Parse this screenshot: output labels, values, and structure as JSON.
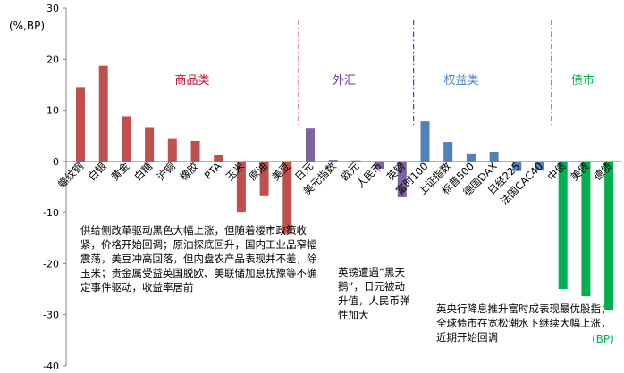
{
  "chart_data": {
    "type": "bar",
    "unit_label": "(%,BP)",
    "bp_label": "(BP)",
    "ylim": [
      -40,
      30
    ],
    "yticks": [
      -40,
      -30,
      -20,
      -10,
      0,
      10,
      20,
      30
    ],
    "grid": false,
    "colors": {
      "commodity": "#c0504d",
      "fx": "#8064a2",
      "equity": "#4f81bd",
      "bond": "#00b050",
      "divider_commodity_fx": "#c0143c",
      "divider_fx_equity": "#7030a0",
      "divider_equity_bond": "#00a0a0"
    },
    "groups": [
      {
        "name": "商品类",
        "color": "#c0143c"
      },
      {
        "name": "外汇",
        "color": "#7030a0"
      },
      {
        "name": "权益类",
        "color": "#4f81bd"
      },
      {
        "name": "债市",
        "color": "#00b050"
      }
    ],
    "categories": [
      "螺纹钢",
      "白银",
      "黄金",
      "白糖",
      "沪铜",
      "橡胶",
      "PTA",
      "玉米",
      "原油",
      "美豆",
      "日元",
      "美元指数",
      "欧元",
      "人民币",
      "英镑",
      "富时100",
      "上证指数",
      "标普500",
      "德国DAX",
      "日经225",
      "法国CAC40",
      "中债",
      "美债",
      "德债"
    ],
    "values": [
      14.4,
      18.7,
      8.8,
      6.7,
      4.4,
      4.0,
      1.2,
      -10.0,
      -6.8,
      -14.1,
      6.4,
      0.3,
      0.2,
      -1.4,
      -7.0,
      7.8,
      3.8,
      1.4,
      1.9,
      -1.9,
      -1.8,
      -25.0,
      -26.4,
      -29.0
    ],
    "series_groups": [
      "commodity",
      "commodity",
      "commodity",
      "commodity",
      "commodity",
      "commodity",
      "commodity",
      "commodity",
      "commodity",
      "commodity",
      "fx",
      "fx",
      "fx",
      "fx",
      "fx",
      "equity",
      "equity",
      "equity",
      "equity",
      "equity",
      "equity",
      "bond",
      "bond",
      "bond"
    ]
  },
  "annotations": {
    "commodity_note": "供给侧改革驱动黑色大幅上涨，但随着楼市政策收紧，价格开始回调；原油探底回升，国内工业品窄幅震荡，美豆冲高回落，但内盘农产品表现并不差，除玉米；贵金属受益英国脱欧、美联储加息扰豫等不确定事件驱动，收益率居前",
    "fx_note": "英镑遭遇“黑天鹅”，日元被动升值，人民币弹性加大",
    "bond_note": "英央行降息推升富时成表现最优股指；全球债市在宽松潮水下继续大幅上涨，近期开始回调"
  }
}
